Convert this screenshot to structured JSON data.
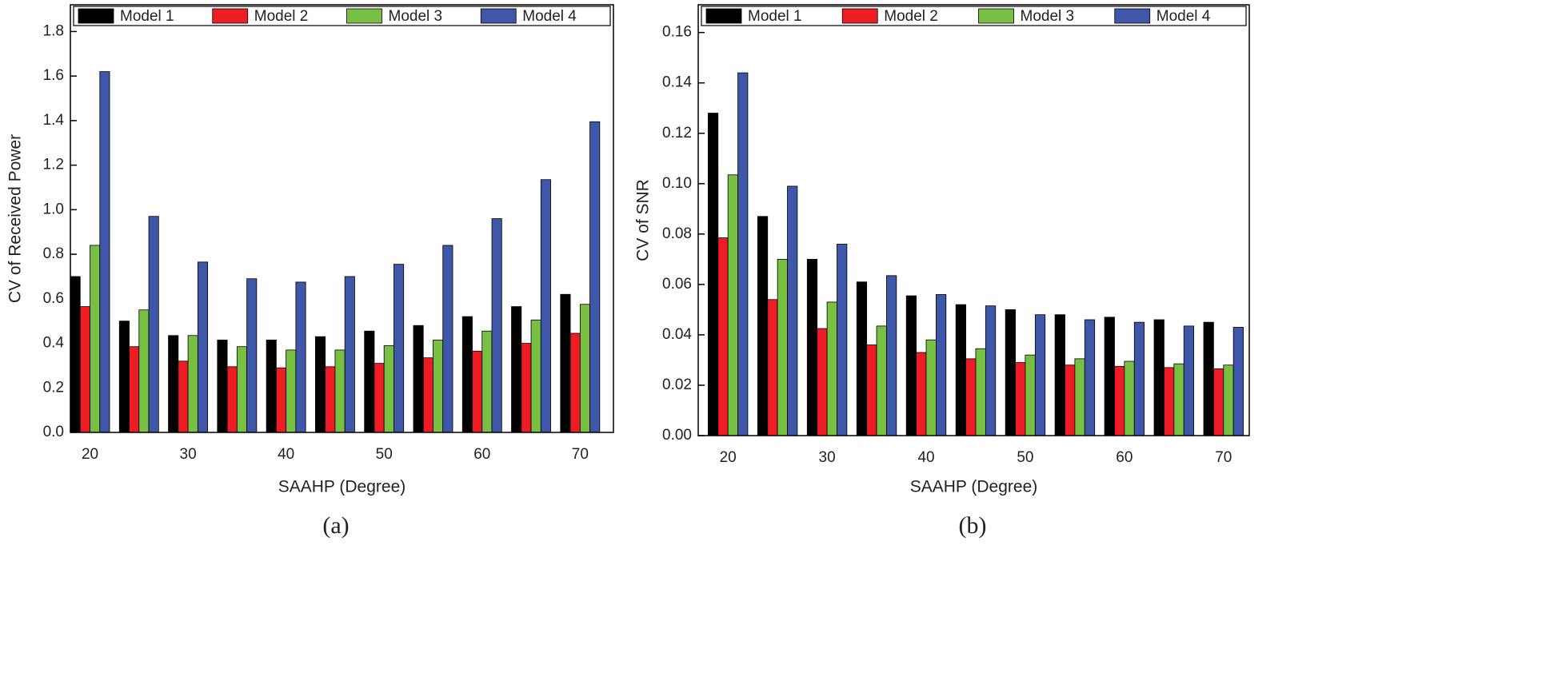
{
  "chart_data": [
    {
      "type": "bar",
      "caption": "(a)",
      "x_label": "SAAHP (Degree)",
      "y_label": "CV of Received Power",
      "x": [
        20,
        25,
        30,
        35,
        40,
        45,
        50,
        55,
        60,
        65,
        70
      ],
      "xlim": [
        18,
        73.4
      ],
      "xticks": [
        20,
        30,
        40,
        50,
        60,
        70
      ],
      "ylim": [
        0,
        1.92
      ],
      "yticks": [
        {
          "value": 0,
          "label": "0.0"
        },
        0.2,
        0.4,
        0.6,
        0.8,
        {
          "value": 1,
          "label": "1.0"
        },
        1.2,
        1.4,
        1.6,
        1.8
      ],
      "legend": "top",
      "series": [
        {
          "name": "Model 1",
          "color": "#000000",
          "values": [
            0.7,
            0.5,
            0.435,
            0.415,
            0.415,
            0.43,
            0.455,
            0.48,
            0.52,
            0.565,
            0.62
          ]
        },
        {
          "name": "Model 2",
          "color": "#ee1c24",
          "values": [
            0.565,
            0.385,
            0.32,
            0.295,
            0.29,
            0.295,
            0.31,
            0.335,
            0.365,
            0.4,
            0.445
          ]
        },
        {
          "name": "Model 3",
          "color": "#77c043",
          "values": [
            0.84,
            0.55,
            0.435,
            0.385,
            0.37,
            0.37,
            0.39,
            0.415,
            0.455,
            0.505,
            0.575
          ]
        },
        {
          "name": "Model 4",
          "color": "#3f57a8",
          "values": [
            1.62,
            0.97,
            0.765,
            0.69,
            0.675,
            0.7,
            0.755,
            0.84,
            0.96,
            1.135,
            1.395
          ]
        }
      ]
    },
    {
      "type": "bar",
      "caption": "(b)",
      "x_label": "SAAHP (Degree)",
      "y_label": "CV of SNR",
      "x": [
        20,
        25,
        30,
        35,
        40,
        45,
        50,
        55,
        60,
        65,
        70
      ],
      "xlim": [
        17,
        72.6
      ],
      "xticks": [
        20,
        30,
        40,
        50,
        60,
        70
      ],
      "ylim": [
        0,
        0.171
      ],
      "yticks": [
        {
          "value": 0,
          "label": "0.00"
        },
        0.02,
        0.04,
        0.06,
        0.08,
        {
          "value": 0.1,
          "label": "0.10"
        },
        0.12,
        0.14,
        0.16
      ],
      "legend": "top",
      "series": [
        {
          "name": "Model 1",
          "color": "#000000",
          "values": [
            0.128,
            0.087,
            0.07,
            0.061,
            0.0555,
            0.052,
            0.05,
            0.048,
            0.047,
            0.046,
            0.045
          ]
        },
        {
          "name": "Model 2",
          "color": "#ee1c24",
          "values": [
            0.0785,
            0.054,
            0.0425,
            0.036,
            0.033,
            0.0305,
            0.029,
            0.028,
            0.0275,
            0.027,
            0.0265
          ]
        },
        {
          "name": "Model 3",
          "color": "#77c043",
          "values": [
            0.1035,
            0.07,
            0.053,
            0.0435,
            0.038,
            0.0345,
            0.032,
            0.0305,
            0.0295,
            0.0285,
            0.028
          ]
        },
        {
          "name": "Model 4",
          "color": "#3f57a8",
          "values": [
            0.144,
            0.099,
            0.076,
            0.0635,
            0.056,
            0.0515,
            0.048,
            0.046,
            0.045,
            0.0435,
            0.043
          ]
        }
      ]
    }
  ]
}
